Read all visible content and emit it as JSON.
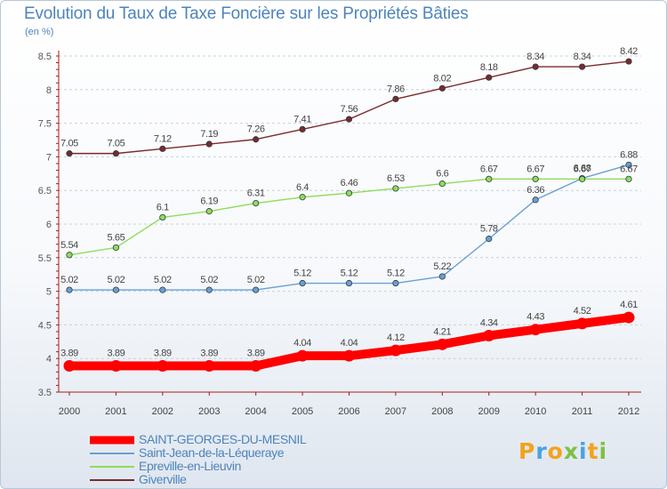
{
  "header": {
    "title": "Evolution du Taux de Taxe Foncière sur les Propriétés Bâties",
    "unit": "(en %)"
  },
  "chart_data": {
    "type": "line",
    "title": "Evolution du Taux de Taxe Foncière sur les Propriétés Bâties",
    "ylabel": "(en %)",
    "xlabel": "",
    "ylim": [
      3.5,
      8.5
    ],
    "yticks": [
      3.5,
      4,
      4.5,
      5,
      5.5,
      6,
      6.5,
      7,
      7.5,
      8,
      8.5
    ],
    "x": [
      "2000",
      "2001",
      "2002",
      "2003",
      "2004",
      "2005",
      "2006",
      "2007",
      "2008",
      "2009",
      "2010",
      "2011",
      "2012"
    ],
    "grid": "horizontal dashed",
    "legend_position": "bottom-left",
    "series": [
      {
        "name": "SAINT-GEORGES-DU-MESNIL",
        "values": [
          3.89,
          3.89,
          3.89,
          3.89,
          3.89,
          4.04,
          4.04,
          4.12,
          4.21,
          4.34,
          4.43,
          4.52,
          4.61
        ],
        "labels": [
          "3.89",
          "3.89",
          "3.89",
          "3.89",
          "3.89",
          "4.04",
          "4.04",
          "4.12",
          "4.21",
          "4.34",
          "4.43",
          "4.52",
          "4.61"
        ],
        "color": "#ff0000",
        "highlight": true
      },
      {
        "name": "Saint-Jean-de-la-Léqueraye",
        "values": [
          5.02,
          5.02,
          5.02,
          5.02,
          5.02,
          5.12,
          5.12,
          5.12,
          5.22,
          5.78,
          6.36,
          6.68,
          6.88
        ],
        "labels": [
          "5.02",
          "5.02",
          "5.02",
          "5.02",
          "5.02",
          "5.12",
          "5.12",
          "5.12",
          "5.22",
          "5.78",
          "6.36",
          "6.68",
          "6.88"
        ],
        "color": "#6b9fd1",
        "highlight": false
      },
      {
        "name": "Epreville-en-Lieuvin",
        "values": [
          5.54,
          5.65,
          6.1,
          6.19,
          6.31,
          6.4,
          6.46,
          6.53,
          6.6,
          6.67,
          6.67,
          6.67,
          6.67
        ],
        "labels": [
          "5.54",
          "5.65",
          "6.1",
          "6.19",
          "6.31",
          "6.4",
          "6.46",
          "6.53",
          "6.6",
          "6.67",
          "6.67",
          "6.67",
          "6.67"
        ],
        "color": "#8fdc5a",
        "highlight": false
      },
      {
        "name": "Giverville",
        "values": [
          7.05,
          7.05,
          7.12,
          7.19,
          7.26,
          7.41,
          7.56,
          7.86,
          8.02,
          8.18,
          8.34,
          8.34,
          8.42
        ],
        "labels": [
          "7.05",
          "7.05",
          "7.12",
          "7.19",
          "7.26",
          "7.41",
          "7.56",
          "7.86",
          "8.02",
          "8.18",
          "8.34",
          "8.34",
          "8.42"
        ],
        "color": "#7a2a2a",
        "highlight": false
      }
    ]
  },
  "logo": {
    "letters": [
      "P",
      "r",
      "o",
      "x",
      "i",
      "t",
      "i"
    ],
    "colors": [
      "#f5a21a",
      "#4aa3df",
      "#f5a21a",
      "#7cc242",
      "#4aa3df",
      "#f5a21a",
      "#7cc242"
    ]
  }
}
